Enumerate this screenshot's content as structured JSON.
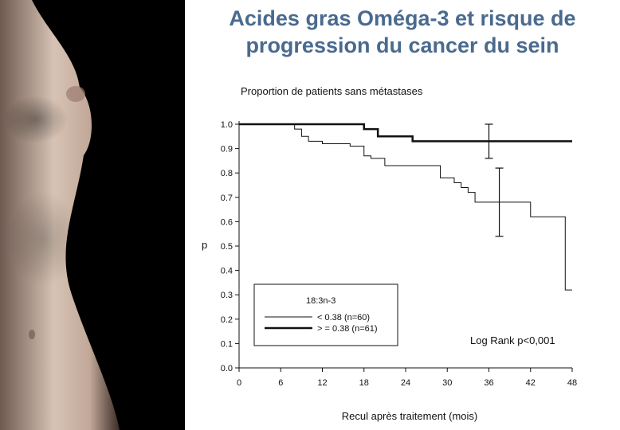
{
  "slide": {
    "title_line1": "Acides gras Oméga-3 et risque de",
    "title_line2": "progression du cancer du sein",
    "accent_color": "#4a6a8e"
  },
  "chart_data": {
    "type": "line",
    "title": "",
    "ylabel_top": "Proportion de patients sans métastases",
    "ylabel_side": "p",
    "xlabel": "Recul après traitement (mois)",
    "xlim": [
      0,
      48
    ],
    "ylim": [
      0,
      1
    ],
    "xticks": [
      "0",
      "6",
      "12",
      "18",
      "24",
      "30",
      "36",
      "42",
      "48"
    ],
    "yticks": [
      "0.0",
      "0.1",
      "0.2",
      "0.3",
      "0.4",
      "0.5",
      "0.6",
      "0.7",
      "0.8",
      "0.9",
      "1.0"
    ],
    "legend_title": "18:3n-3",
    "legend_position": "bottom-left",
    "annotation": "Log Rank p<0,001",
    "series": [
      {
        "name": "<  0.38 (n=60)",
        "line_width": "thin",
        "steps": [
          [
            0,
            1.0
          ],
          [
            8,
            0.98
          ],
          [
            9,
            0.95
          ],
          [
            10,
            0.93
          ],
          [
            12,
            0.92
          ],
          [
            16,
            0.91
          ],
          [
            18,
            0.87
          ],
          [
            19,
            0.86
          ],
          [
            21,
            0.83
          ],
          [
            29,
            0.78
          ],
          [
            31,
            0.76
          ],
          [
            32,
            0.74
          ],
          [
            33,
            0.72
          ],
          [
            34,
            0.68
          ],
          [
            42,
            0.62
          ],
          [
            47,
            0.32
          ],
          [
            48,
            0.32
          ]
        ],
        "error_bar": {
          "x": 37.5,
          "y": 0.68,
          "low": 0.54,
          "high": 0.82
        }
      },
      {
        "name": "> = 0.38 (n=61)",
        "line_width": "thick",
        "steps": [
          [
            0,
            1.0
          ],
          [
            18,
            0.98
          ],
          [
            20,
            0.95
          ],
          [
            25,
            0.93
          ],
          [
            48,
            0.93
          ]
        ],
        "error_bar": {
          "x": 36,
          "y": 0.93,
          "low": 0.86,
          "high": 1.0
        }
      }
    ]
  }
}
